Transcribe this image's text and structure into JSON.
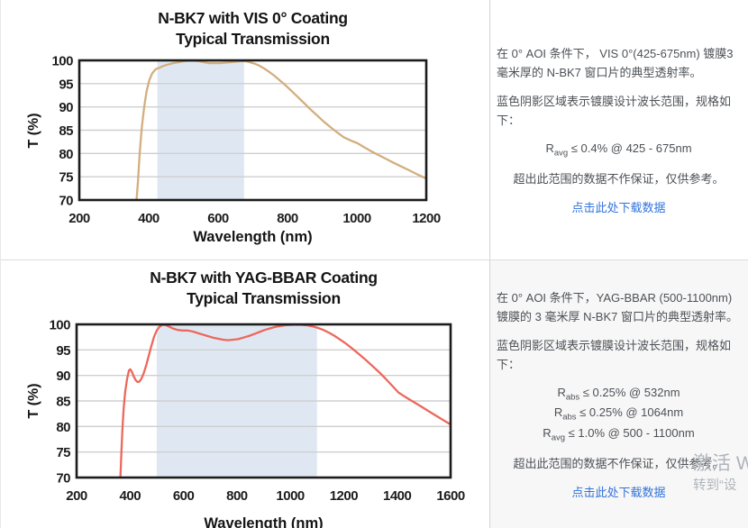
{
  "chart_data": [
    {
      "type": "line",
      "title_line1": "N-BK7 with VIS 0° Coating",
      "title_line2": "Typical Transmission",
      "xlabel": "Wavelength (nm)",
      "ylabel": "T (%)",
      "xlim": [
        200,
        1200
      ],
      "ylim": [
        70,
        100
      ],
      "x_ticks": [
        200,
        400,
        600,
        800,
        1000,
        1200
      ],
      "y_ticks": [
        70,
        75,
        80,
        85,
        90,
        95,
        100
      ],
      "design_band_nm": [
        425,
        675
      ],
      "band_color": "#dfe8f2",
      "line_color": "#d3ae7e",
      "grid_color": "#cfcfcf",
      "grid": "horizontal-only",
      "legend": "none",
      "series": [
        {
          "name": "typical-transmission-vis-coating",
          "points": [
            [
              365,
              70
            ],
            [
              369,
              74
            ],
            [
              374,
              80
            ],
            [
              380,
              85.5
            ],
            [
              387,
              90
            ],
            [
              394,
              93.4
            ],
            [
              402,
              95.8
            ],
            [
              410,
              97.2
            ],
            [
              420,
              98.1
            ],
            [
              430,
              98.4
            ],
            [
              442,
              98.8
            ],
            [
              455,
              99.1
            ],
            [
              470,
              99.4
            ],
            [
              485,
              99.6
            ],
            [
              500,
              99.8
            ],
            [
              515,
              99.9
            ],
            [
              530,
              99.9
            ],
            [
              545,
              99.8
            ],
            [
              560,
              99.6
            ],
            [
              575,
              99.4
            ],
            [
              590,
              99.4
            ],
            [
              605,
              99.4
            ],
            [
              620,
              99.5
            ],
            [
              635,
              99.6
            ],
            [
              650,
              99.7
            ],
            [
              665,
              99.8
            ],
            [
              680,
              99.8
            ],
            [
              692,
              99.6
            ],
            [
              705,
              99.3
            ],
            [
              718,
              98.9
            ],
            [
              732,
              98.3
            ],
            [
              746,
              97.6
            ],
            [
              762,
              96.7
            ],
            [
              778,
              95.7
            ],
            [
              795,
              94.6
            ],
            [
              812,
              93.4
            ],
            [
              830,
              92.1
            ],
            [
              848,
              90.8
            ],
            [
              866,
              89.5
            ],
            [
              885,
              88.2
            ],
            [
              904,
              86.9
            ],
            [
              923,
              85.7
            ],
            [
              942,
              84.6
            ],
            [
              962,
              83.5
            ],
            [
              982,
              82.8
            ],
            [
              1002,
              82.2
            ],
            [
              1022,
              81.3
            ],
            [
              1043,
              80.4
            ],
            [
              1064,
              79.6
            ],
            [
              1085,
              78.8
            ],
            [
              1106,
              78
            ],
            [
              1128,
              77.2
            ],
            [
              1150,
              76.4
            ],
            [
              1172,
              75.6
            ],
            [
              1186,
              75.1
            ],
            [
              1200,
              74.6
            ]
          ]
        }
      ]
    },
    {
      "type": "line",
      "title_line1": "N-BK7 with YAG-BBAR Coating",
      "title_line2": "Typical Transmission",
      "xlabel": "Wavelength (nm)",
      "ylabel": "T (%)",
      "xlim": [
        200,
        1600
      ],
      "ylim": [
        70,
        100
      ],
      "x_ticks": [
        200,
        400,
        600,
        800,
        1000,
        1200,
        1400,
        1600
      ],
      "y_ticks": [
        70,
        75,
        80,
        85,
        90,
        95,
        100
      ],
      "design_band_nm": [
        500,
        1100
      ],
      "band_color": "#dfe8f2",
      "line_color": "#ec685c",
      "grid_color": "#cfcfcf",
      "grid": "horizontal-only",
      "legend": "none",
      "series": [
        {
          "name": "typical-transmission-yag-bbar-coating",
          "points": [
            [
              364,
              70
            ],
            [
              367,
              74
            ],
            [
              371,
              79
            ],
            [
              376,
              83.5
            ],
            [
              382,
              86.8
            ],
            [
              389,
              89.3
            ],
            [
              396,
              91
            ],
            [
              401,
              91.2
            ],
            [
              407,
              90.7
            ],
            [
              414,
              89.8
            ],
            [
              421,
              89.1
            ],
            [
              428,
              88.7
            ],
            [
              435,
              88.8
            ],
            [
              443,
              89.4
            ],
            [
              451,
              90.4
            ],
            [
              460,
              91.9
            ],
            [
              470,
              93.8
            ],
            [
              480,
              95.8
            ],
            [
              490,
              97.6
            ],
            [
              500,
              98.8
            ],
            [
              510,
              99.5
            ],
            [
              520,
              99.9
            ],
            [
              532,
              99.9
            ],
            [
              545,
              99.6
            ],
            [
              560,
              99.2
            ],
            [
              578,
              98.9
            ],
            [
              596,
              98.8
            ],
            [
              615,
              98.8
            ],
            [
              634,
              98.6
            ],
            [
              653,
              98.3
            ],
            [
              672,
              98
            ],
            [
              691,
              97.7
            ],
            [
              710,
              97.4
            ],
            [
              729,
              97.2
            ],
            [
              748,
              97
            ],
            [
              767,
              96.9
            ],
            [
              786,
              97
            ],
            [
              805,
              97.1
            ],
            [
              824,
              97.4
            ],
            [
              844,
              97.7
            ],
            [
              864,
              98.1
            ],
            [
              884,
              98.5
            ],
            [
              904,
              98.9
            ],
            [
              924,
              99.2
            ],
            [
              944,
              99.5
            ],
            [
              964,
              99.7
            ],
            [
              984,
              99.85
            ],
            [
              1004,
              99.9
            ],
            [
              1024,
              99.95
            ],
            [
              1044,
              99.9
            ],
            [
              1064,
              99.8
            ],
            [
              1084,
              99.6
            ],
            [
              1104,
              99.3
            ],
            [
              1124,
              98.9
            ],
            [
              1144,
              98.4
            ],
            [
              1164,
              97.8
            ],
            [
              1184,
              97.1
            ],
            [
              1204,
              96.4
            ],
            [
              1229,
              95.4
            ],
            [
              1254,
              94.3
            ],
            [
              1279,
              93.2
            ],
            [
              1304,
              92
            ],
            [
              1329,
              90.8
            ],
            [
              1354,
              89.5
            ],
            [
              1379,
              88.1
            ],
            [
              1404,
              86.7
            ],
            [
              1424,
              86
            ],
            [
              1449,
              85.2
            ],
            [
              1474,
              84.4
            ],
            [
              1499,
              83.6
            ],
            [
              1524,
              82.8
            ],
            [
              1549,
              82
            ],
            [
              1574,
              81.2
            ],
            [
              1600,
              80.4
            ]
          ]
        }
      ]
    }
  ],
  "panels": [
    {
      "description": "在 0° AOI 条件下， VIS 0°(425-675nm) 镀膜3 毫米厚的 N-BK7 窗口片的典型透射率。",
      "band_note": "蓝色阴影区域表示镀膜设计波长范围，规格如下：",
      "specs": [
        {
          "prefix": "R",
          "sub": "avg",
          "rest": " ≤ 0.4% @ 425 - 675nm"
        }
      ],
      "disclaimer": "超出此范围的数据不作保证，仅供参考。",
      "link_label": "点击此处下载数据",
      "link_color": "#3273dc"
    },
    {
      "description": "在 0° AOI 条件下，YAG-BBAR (500-1100nm) 镀膜的 3 毫米厚 N-BK7 窗口片的典型透射率。",
      "band_note": "蓝色阴影区域表示镀膜设计波长范围，规格如下：",
      "specs": [
        {
          "prefix": "R",
          "sub": "abs",
          "rest": " ≤ 0.25% @ 532nm"
        },
        {
          "prefix": "R",
          "sub": "abs",
          "rest": " ≤ 0.25% @ 1064nm"
        },
        {
          "prefix": "R",
          "sub": "avg",
          "rest": " ≤ 1.0% @ 500 - 1100nm"
        }
      ],
      "disclaimer": "超出此范围的数据不作保证，仅供参考。",
      "link_label": "点击此处下载数据",
      "link_color": "#3273dc"
    }
  ],
  "watermark": {
    "line1": "激活 W",
    "line2": "转到“设",
    "color": "#afb4ba"
  }
}
